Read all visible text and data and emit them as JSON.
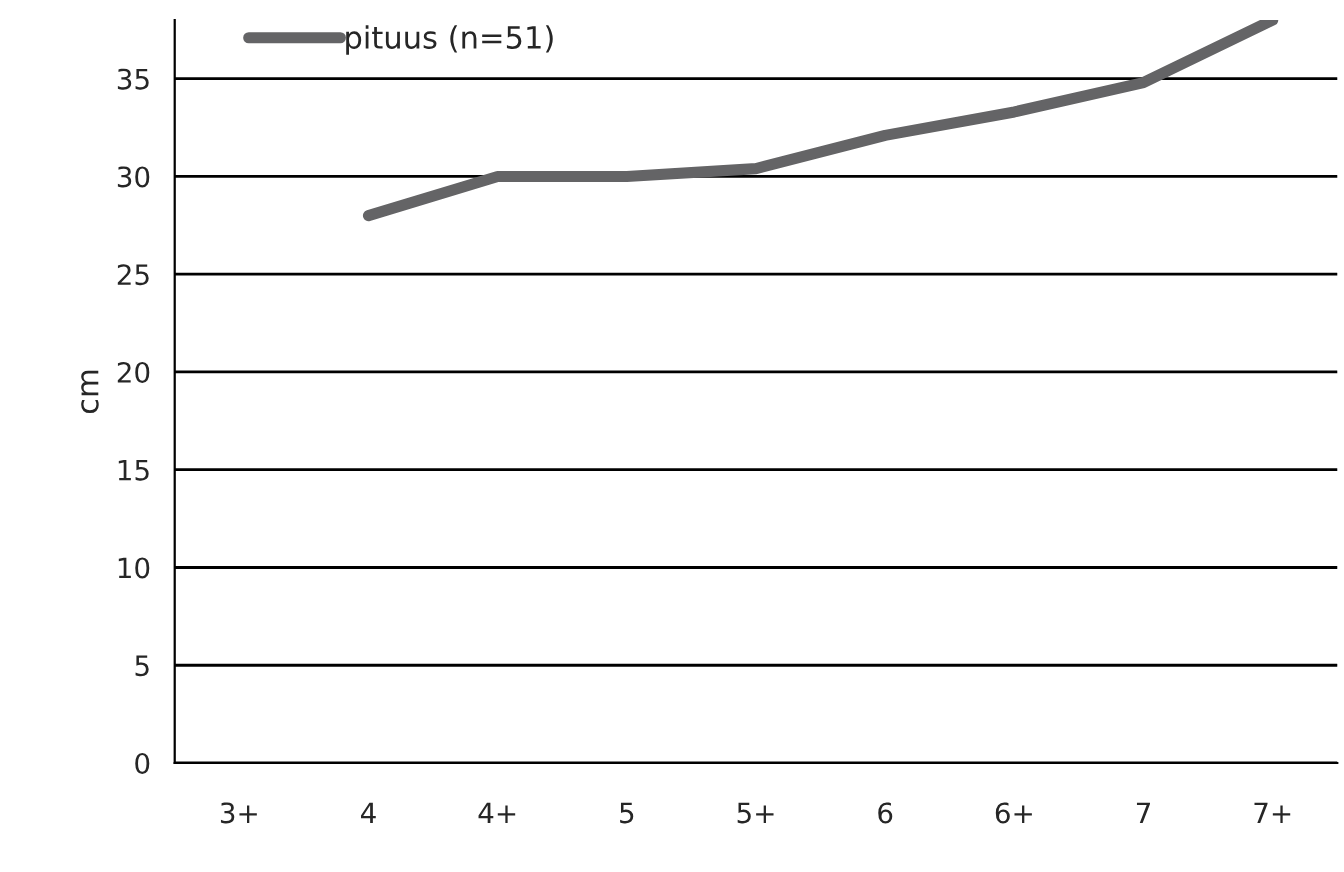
{
  "chart_data": {
    "type": "line",
    "ylabel": "cm",
    "categories": [
      "3+",
      "4",
      "4+",
      "5",
      "5+",
      "6",
      "6+",
      "7",
      "7+"
    ],
    "series": [
      {
        "name": "pituus (n=51)",
        "color": "#646466",
        "values": [
          null,
          28,
          30,
          30,
          30.4,
          32.1,
          33.3,
          34.8,
          38
        ]
      }
    ],
    "ylim": [
      0,
      38
    ],
    "yticks": [
      0,
      5,
      10,
      15,
      20,
      25,
      30,
      35
    ],
    "grid": "y",
    "legend": "top left",
    "marker": "none",
    "line_style": "solid"
  }
}
